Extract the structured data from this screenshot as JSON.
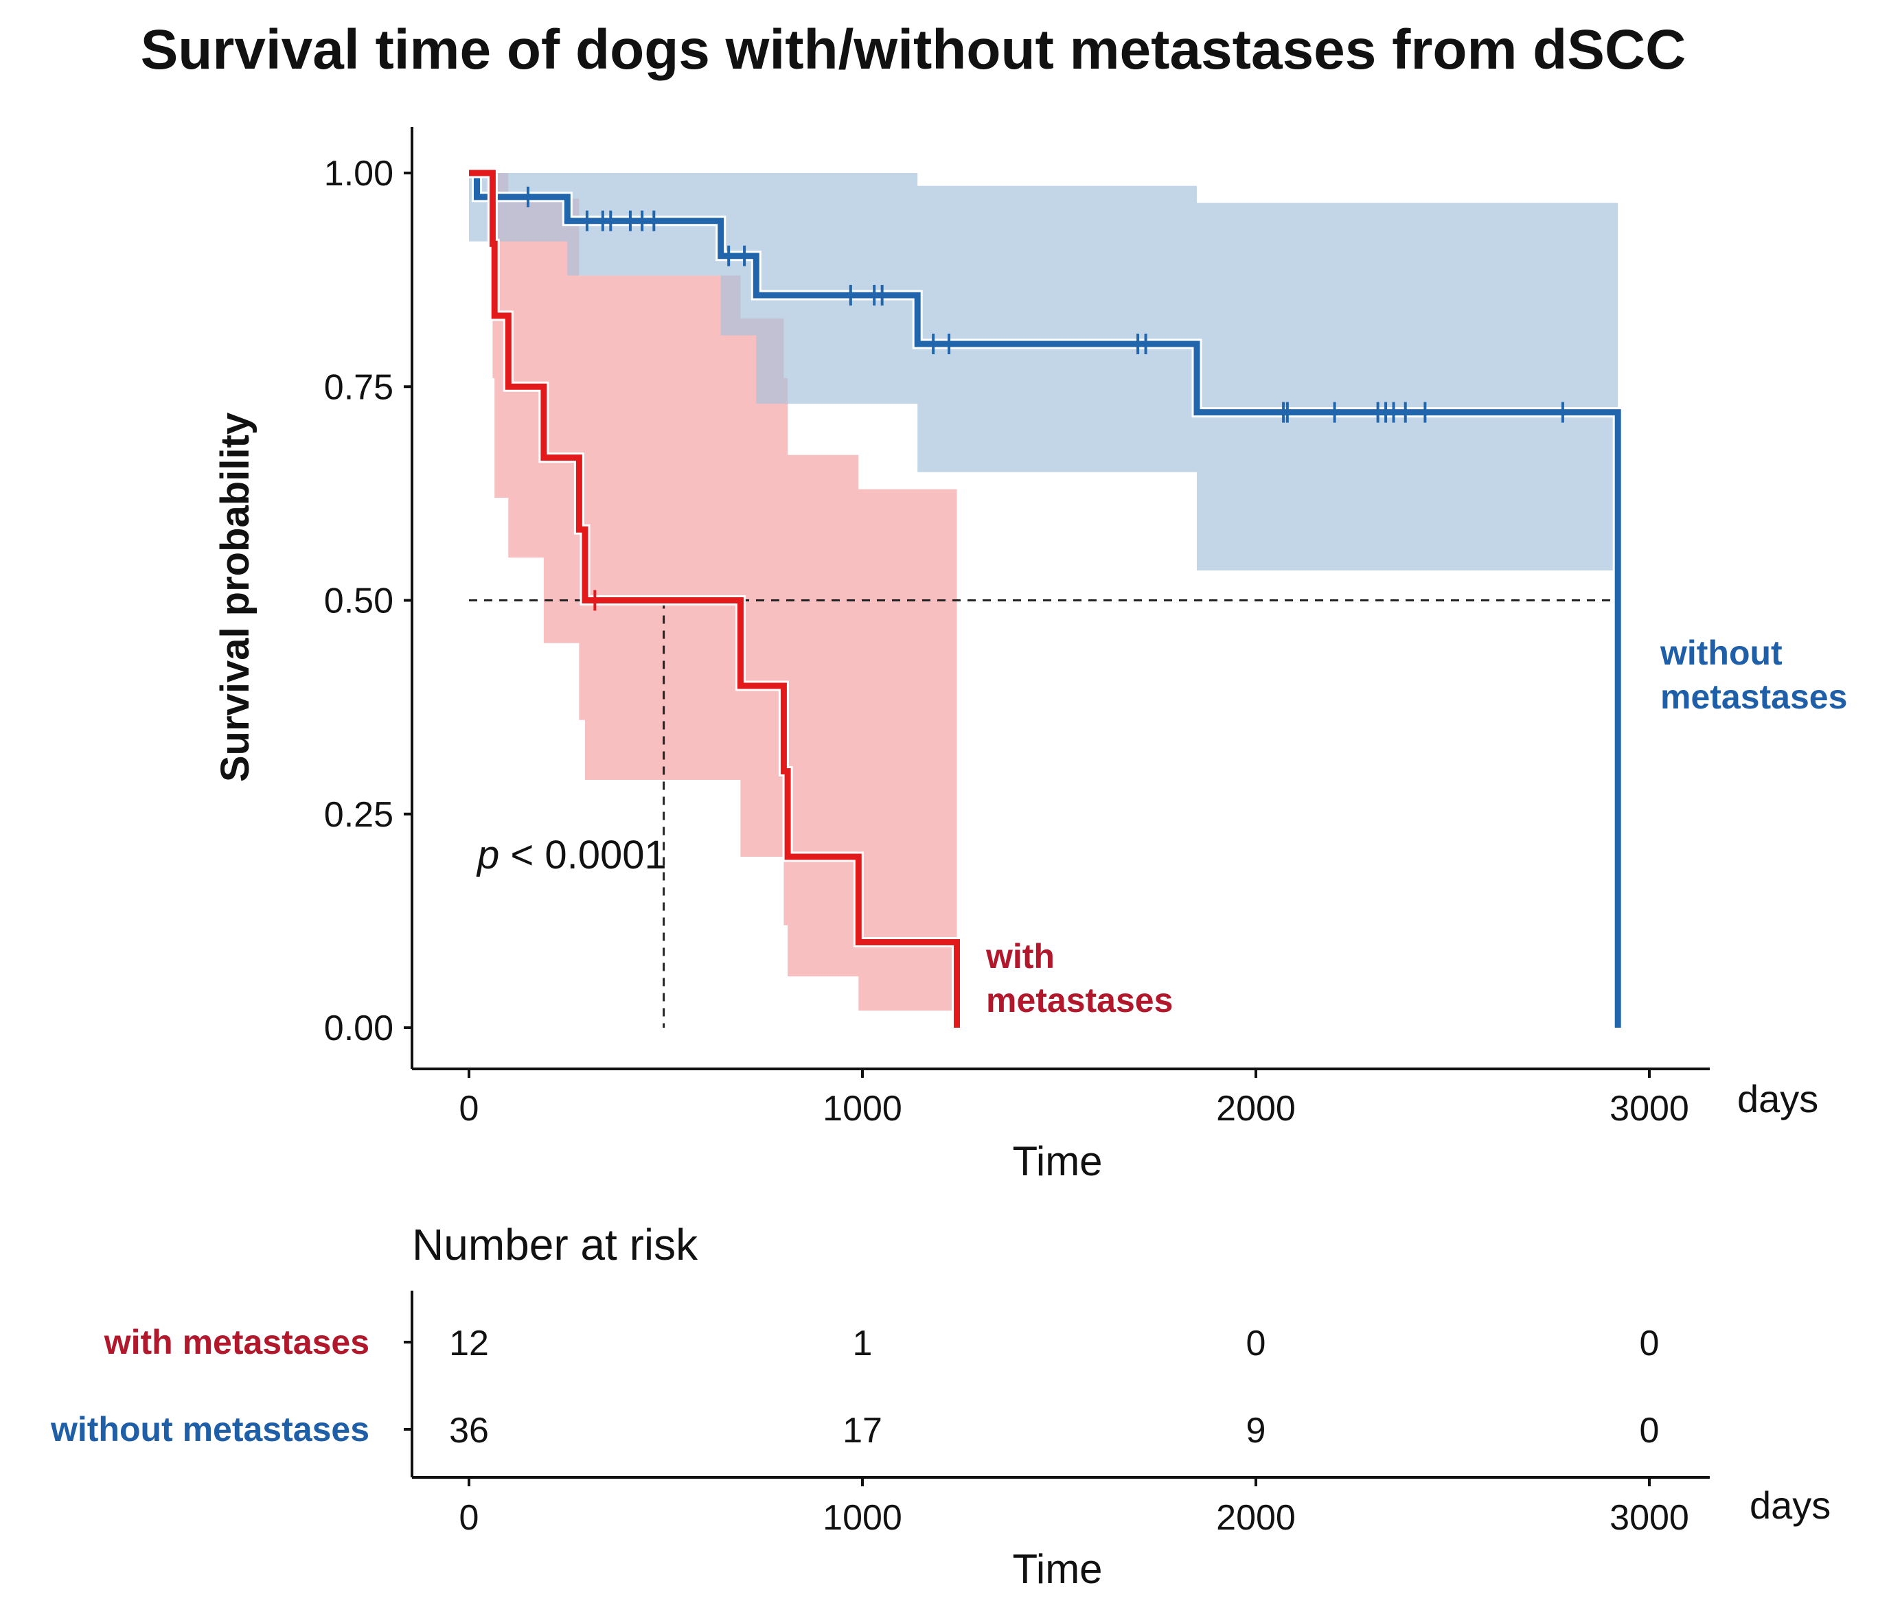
{
  "chart_data": {
    "type": "kaplan-meier",
    "title": "Survival time of dogs with/without metastases from dSCC",
    "xlabel": "Time",
    "ylabel": "Survival probability",
    "x_unit": "days",
    "xlim": [
      0,
      3000
    ],
    "ylim": [
      0,
      1
    ],
    "xticks": [
      "0",
      "1000",
      "2000",
      "3000"
    ],
    "yticks": [
      "0.00",
      "0.25",
      "0.50",
      "0.75",
      "1.00"
    ],
    "median_line_y": 0.5,
    "median_with_metastases_days": 495,
    "p_value_prefix": "p",
    "p_value_text": "< 0.0001",
    "colors": {
      "with": "#e31a1c",
      "with_text": "#b2182b",
      "without": "#2166ac",
      "without_text": "#1f5fa8",
      "with_band": "#f4a6a6",
      "without_band": "#a7c3dd"
    },
    "series": [
      {
        "name": "with metastases",
        "label_lines": [
          "with",
          "metastases"
        ],
        "steps": [
          [
            0,
            1.0
          ],
          [
            60,
            0.917
          ],
          [
            65,
            0.833
          ],
          [
            100,
            0.75
          ],
          [
            190,
            0.667
          ],
          [
            280,
            0.583
          ],
          [
            295,
            0.5
          ],
          [
            690,
            0.4
          ],
          [
            800,
            0.3
          ],
          [
            810,
            0.2
          ],
          [
            990,
            0.1
          ],
          [
            1240,
            0.0
          ]
        ],
        "band": [
          [
            0,
            1.0,
            1.0
          ],
          [
            60,
            0.76,
            1.0
          ],
          [
            65,
            0.62,
            1.0
          ],
          [
            100,
            0.55,
            0.97
          ],
          [
            190,
            0.45,
            0.97
          ],
          [
            280,
            0.36,
            0.88
          ],
          [
            295,
            0.29,
            0.88
          ],
          [
            690,
            0.2,
            0.83
          ],
          [
            800,
            0.12,
            0.76
          ],
          [
            810,
            0.06,
            0.67
          ],
          [
            990,
            0.02,
            0.63
          ],
          [
            1240,
            0.02,
            0.63
          ]
        ],
        "censor": [
          320
        ]
      },
      {
        "name": "without metastases",
        "label_lines": [
          "without",
          "metastases"
        ],
        "steps": [
          [
            0,
            1.0
          ],
          [
            20,
            0.972
          ],
          [
            250,
            0.944
          ],
          [
            640,
            0.903
          ],
          [
            730,
            0.857
          ],
          [
            1140,
            0.8
          ],
          [
            1850,
            0.72
          ],
          [
            2920,
            0.0
          ]
        ],
        "band": [
          [
            0,
            0.92,
            1.0
          ],
          [
            20,
            0.92,
            1.0
          ],
          [
            250,
            0.88,
            1.0
          ],
          [
            640,
            0.81,
            1.0
          ],
          [
            730,
            0.73,
            1.0
          ],
          [
            1140,
            0.65,
            0.985
          ],
          [
            1850,
            0.535,
            0.965
          ],
          [
            2920,
            0.535,
            0.965
          ]
        ],
        "censor": [
          150,
          300,
          340,
          360,
          410,
          440,
          470,
          660,
          700,
          970,
          1030,
          1050,
          1180,
          1220,
          1700,
          1720,
          2070,
          2080,
          2200,
          2310,
          2330,
          2350,
          2380,
          2430,
          2780
        ]
      }
    ],
    "risk_table": {
      "title": "Number at risk",
      "xlabel": "Time",
      "x_unit": "days",
      "times": [
        0,
        1000,
        2000,
        3000
      ],
      "time_labels": [
        "0",
        "1000",
        "2000",
        "3000"
      ],
      "rows": [
        {
          "label": "with metastases",
          "values": [
            "12",
            "1",
            "0",
            "0"
          ]
        },
        {
          "label": "without metastases",
          "values": [
            "36",
            "17",
            "9",
            "0"
          ]
        }
      ]
    }
  }
}
